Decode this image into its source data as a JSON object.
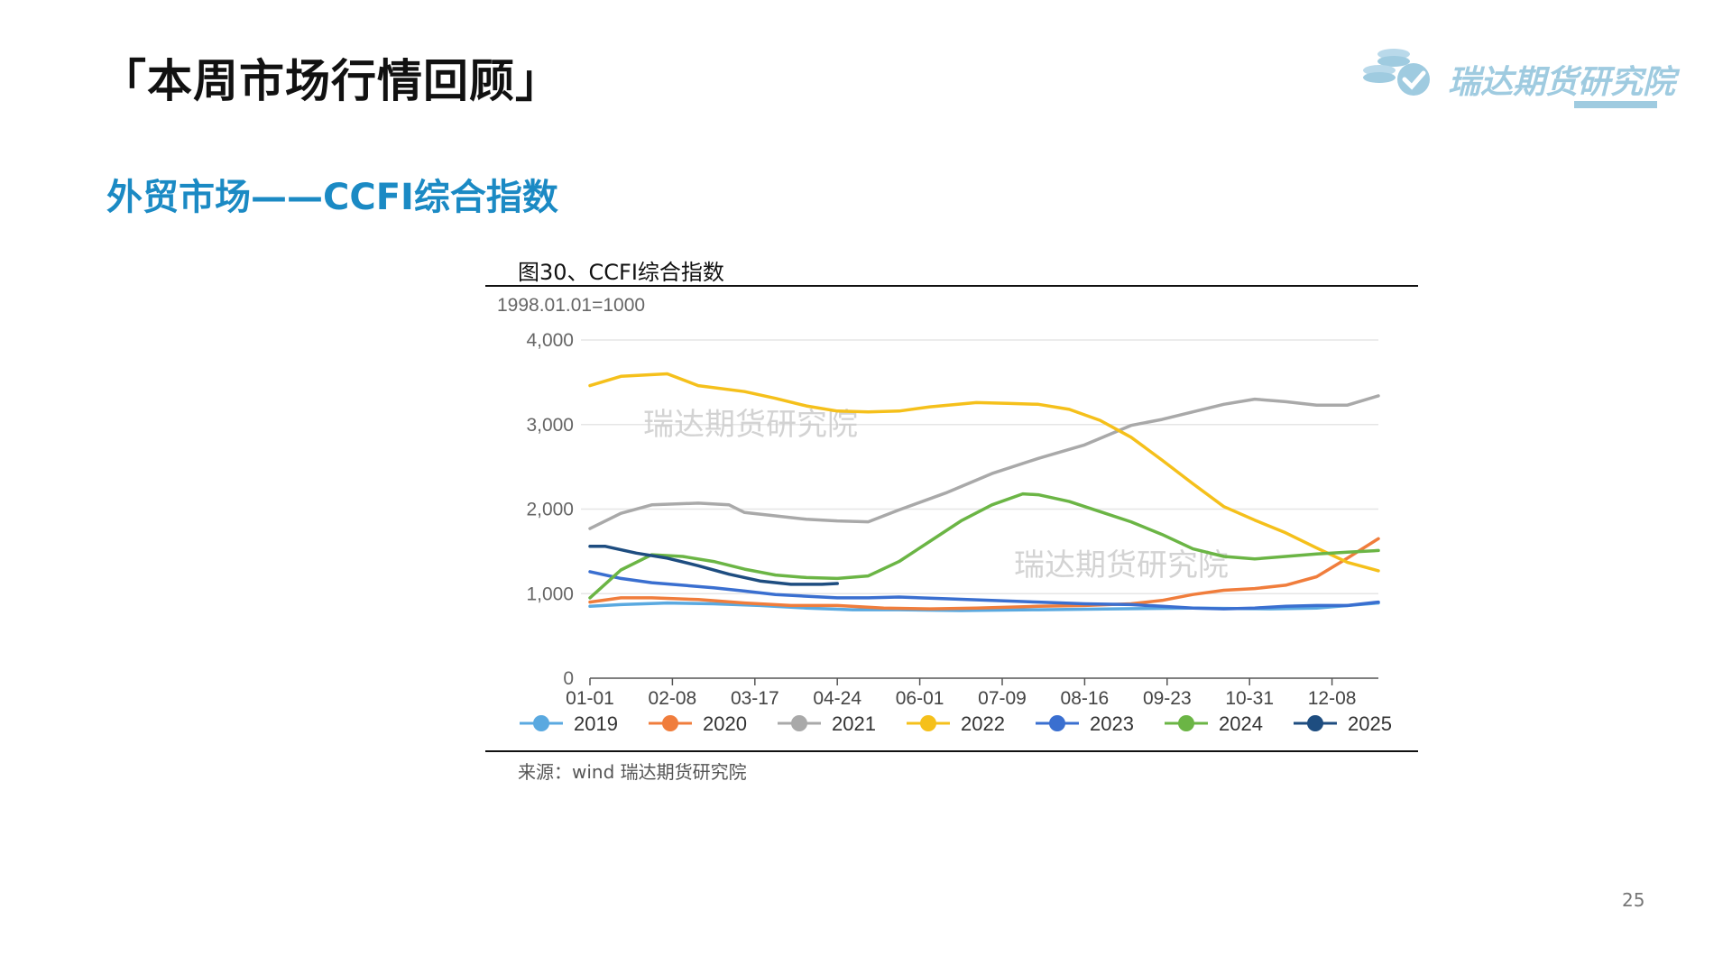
{
  "page": {
    "title": "「本周市场行情回顾」",
    "section_title": "外贸市场——CCFI综合指数",
    "figure_title": "图30、CCFI综合指数",
    "source": "来源：wind   瑞达期货研究院",
    "page_number": "25",
    "logo_text": "瑞达期货研究院"
  },
  "colors": {
    "accent": "#1b8ac4",
    "logo": "#9fcbe0",
    "grid": "#e6e6e6",
    "axis": "#555555"
  },
  "chart_data": {
    "type": "line",
    "unit_note": "1998.01.01=1000",
    "watermark": "瑞达期货研究院",
    "x_ticks": [
      "01-01",
      "02-08",
      "03-17",
      "04-24",
      "06-01",
      "07-09",
      "08-16",
      "09-23",
      "10-31",
      "12-08"
    ],
    "y_ticks": [
      "0",
      "1,000",
      "2,000",
      "3,000",
      "4,000"
    ],
    "ylim": [
      0,
      4000
    ],
    "x_domain": [
      1,
      52
    ],
    "grid": true,
    "legend_position": "bottom",
    "series": [
      {
        "name": "2019",
        "color": "#5aa9e0",
        "points": [
          [
            1,
            850
          ],
          [
            3,
            870
          ],
          [
            6,
            890
          ],
          [
            9,
            880
          ],
          [
            12,
            860
          ],
          [
            15,
            830
          ],
          [
            18,
            810
          ],
          [
            21,
            810
          ],
          [
            25,
            800
          ],
          [
            30,
            810
          ],
          [
            35,
            820
          ],
          [
            40,
            830
          ],
          [
            45,
            820
          ],
          [
            48,
            830
          ],
          [
            52,
            890
          ]
        ]
      },
      {
        "name": "2020",
        "color": "#f07d3c",
        "points": [
          [
            1,
            900
          ],
          [
            3,
            950
          ],
          [
            5,
            950
          ],
          [
            8,
            930
          ],
          [
            11,
            890
          ],
          [
            14,
            860
          ],
          [
            17,
            860
          ],
          [
            20,
            830
          ],
          [
            23,
            820
          ],
          [
            26,
            830
          ],
          [
            30,
            850
          ],
          [
            33,
            860
          ],
          [
            36,
            880
          ],
          [
            38,
            920
          ],
          [
            40,
            990
          ],
          [
            42,
            1040
          ],
          [
            44,
            1060
          ],
          [
            46,
            1100
          ],
          [
            48,
            1200
          ],
          [
            50,
            1420
          ],
          [
            52,
            1650
          ]
        ]
      },
      {
        "name": "2021",
        "color": "#a9a9a9",
        "points": [
          [
            1,
            1770
          ],
          [
            3,
            1950
          ],
          [
            5,
            2050
          ],
          [
            8,
            2070
          ],
          [
            10,
            2050
          ],
          [
            11,
            1960
          ],
          [
            13,
            1920
          ],
          [
            15,
            1880
          ],
          [
            17,
            1860
          ],
          [
            19,
            1850
          ],
          [
            21,
            1990
          ],
          [
            24,
            2190
          ],
          [
            27,
            2420
          ],
          [
            30,
            2600
          ],
          [
            33,
            2760
          ],
          [
            36,
            2990
          ],
          [
            38,
            3060
          ],
          [
            40,
            3150
          ],
          [
            42,
            3240
          ],
          [
            44,
            3300
          ],
          [
            46,
            3270
          ],
          [
            48,
            3230
          ],
          [
            50,
            3230
          ],
          [
            52,
            3340
          ]
        ]
      },
      {
        "name": "2022",
        "color": "#f5c01b",
        "points": [
          [
            1,
            3460
          ],
          [
            3,
            3570
          ],
          [
            6,
            3600
          ],
          [
            8,
            3460
          ],
          [
            11,
            3390
          ],
          [
            13,
            3310
          ],
          [
            15,
            3220
          ],
          [
            17,
            3160
          ],
          [
            19,
            3150
          ],
          [
            21,
            3160
          ],
          [
            23,
            3210
          ],
          [
            26,
            3260
          ],
          [
            28,
            3250
          ],
          [
            30,
            3240
          ],
          [
            32,
            3180
          ],
          [
            34,
            3050
          ],
          [
            36,
            2850
          ],
          [
            38,
            2580
          ],
          [
            40,
            2300
          ],
          [
            42,
            2030
          ],
          [
            44,
            1870
          ],
          [
            46,
            1720
          ],
          [
            48,
            1540
          ],
          [
            50,
            1370
          ],
          [
            52,
            1270
          ]
        ]
      },
      {
        "name": "2023",
        "color": "#3a6fd0",
        "points": [
          [
            1,
            1260
          ],
          [
            3,
            1180
          ],
          [
            5,
            1130
          ],
          [
            7,
            1100
          ],
          [
            9,
            1070
          ],
          [
            11,
            1030
          ],
          [
            13,
            990
          ],
          [
            15,
            970
          ],
          [
            17,
            950
          ],
          [
            19,
            950
          ],
          [
            21,
            960
          ],
          [
            24,
            940
          ],
          [
            27,
            920
          ],
          [
            30,
            900
          ],
          [
            33,
            880
          ],
          [
            36,
            870
          ],
          [
            38,
            850
          ],
          [
            40,
            830
          ],
          [
            42,
            820
          ],
          [
            44,
            830
          ],
          [
            46,
            850
          ],
          [
            48,
            860
          ],
          [
            50,
            860
          ],
          [
            52,
            900
          ]
        ]
      },
      {
        "name": "2024",
        "color": "#6bb545",
        "points": [
          [
            1,
            950
          ],
          [
            3,
            1280
          ],
          [
            5,
            1460
          ],
          [
            7,
            1440
          ],
          [
            9,
            1380
          ],
          [
            11,
            1290
          ],
          [
            13,
            1220
          ],
          [
            15,
            1190
          ],
          [
            17,
            1180
          ],
          [
            19,
            1210
          ],
          [
            21,
            1380
          ],
          [
            23,
            1620
          ],
          [
            25,
            1860
          ],
          [
            27,
            2050
          ],
          [
            29,
            2180
          ],
          [
            30,
            2170
          ],
          [
            32,
            2090
          ],
          [
            34,
            1970
          ],
          [
            36,
            1850
          ],
          [
            38,
            1700
          ],
          [
            40,
            1530
          ],
          [
            42,
            1440
          ],
          [
            44,
            1410
          ],
          [
            46,
            1440
          ],
          [
            48,
            1470
          ],
          [
            50,
            1490
          ],
          [
            52,
            1510
          ]
        ]
      },
      {
        "name": "2025",
        "color": "#1e4d80",
        "points": [
          [
            1,
            1560
          ],
          [
            2,
            1560
          ],
          [
            4,
            1480
          ],
          [
            6,
            1420
          ],
          [
            8,
            1330
          ],
          [
            10,
            1230
          ],
          [
            12,
            1150
          ],
          [
            14,
            1110
          ],
          [
            16,
            1110
          ],
          [
            17,
            1120
          ]
        ]
      }
    ]
  }
}
